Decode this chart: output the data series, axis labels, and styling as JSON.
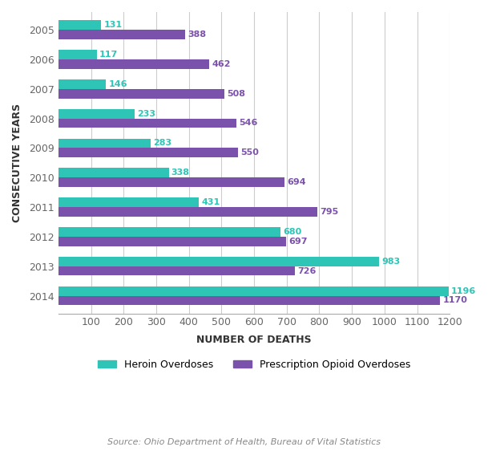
{
  "years": [
    "2005",
    "2006",
    "2007",
    "2008",
    "2009",
    "2010",
    "2011",
    "2012",
    "2013",
    "2014"
  ],
  "heroin": [
    131,
    117,
    146,
    233,
    283,
    338,
    431,
    680,
    983,
    1196
  ],
  "prescription": [
    388,
    462,
    508,
    546,
    550,
    694,
    795,
    697,
    726,
    1170
  ],
  "heroin_color": "#2ec4b6",
  "prescription_color": "#7b52ab",
  "heroin_label": "Heroin Overdoses",
  "prescription_label": "Prescription Opioid Overdoses",
  "xlabel": "NUMBER OF DEATHS",
  "ylabel": "CONSECUTIVE YEARS",
  "xlim": [
    0,
    1200
  ],
  "xticks": [
    100,
    200,
    300,
    400,
    500,
    600,
    700,
    800,
    900,
    1000,
    1100,
    1200
  ],
  "source_text": "Source: Ohio Department of Health, Bureau of Vital Statistics",
  "background_color": "#ffffff",
  "grid_color": "#cccccc",
  "bar_height": 0.32,
  "label_fontsize": 9,
  "tick_fontsize": 9,
  "annotation_fontsize": 8
}
